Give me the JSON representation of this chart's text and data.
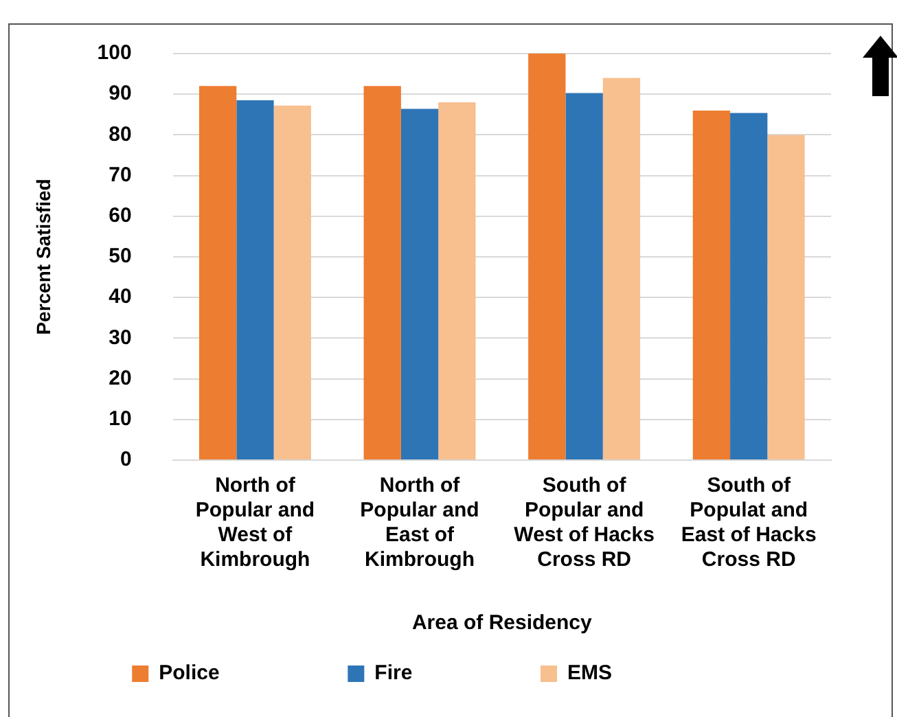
{
  "chart_data": {
    "type": "bar",
    "xlabel": "Area of Residency",
    "ylabel": "Percent Satisfied",
    "categories": [
      "North of\nPopular and\nWest of\nKimbrough",
      "North of\nPopular and\nEast of\nKimbrough",
      "South of\nPopular and\nWest of Hacks\nCross RD",
      "South of\nPopulat and\nEast of Hacks\nCross RD"
    ],
    "series": [
      {
        "name": "Police",
        "color": "#ed7d31",
        "values": [
          92,
          92,
          100,
          86
        ]
      },
      {
        "name": "Fire",
        "color": "#2e75b6",
        "values": [
          88.5,
          86.4,
          90.3,
          85.4
        ]
      },
      {
        "name": "EMS",
        "color": "#f8bf8f",
        "values": [
          87.2,
          88,
          94,
          80
        ]
      }
    ],
    "ylim": [
      0,
      100
    ],
    "yticks": [
      0,
      10,
      20,
      30,
      40,
      50,
      60,
      70,
      80,
      90,
      100
    ],
    "grid": "y",
    "legend": "bottom"
  }
}
